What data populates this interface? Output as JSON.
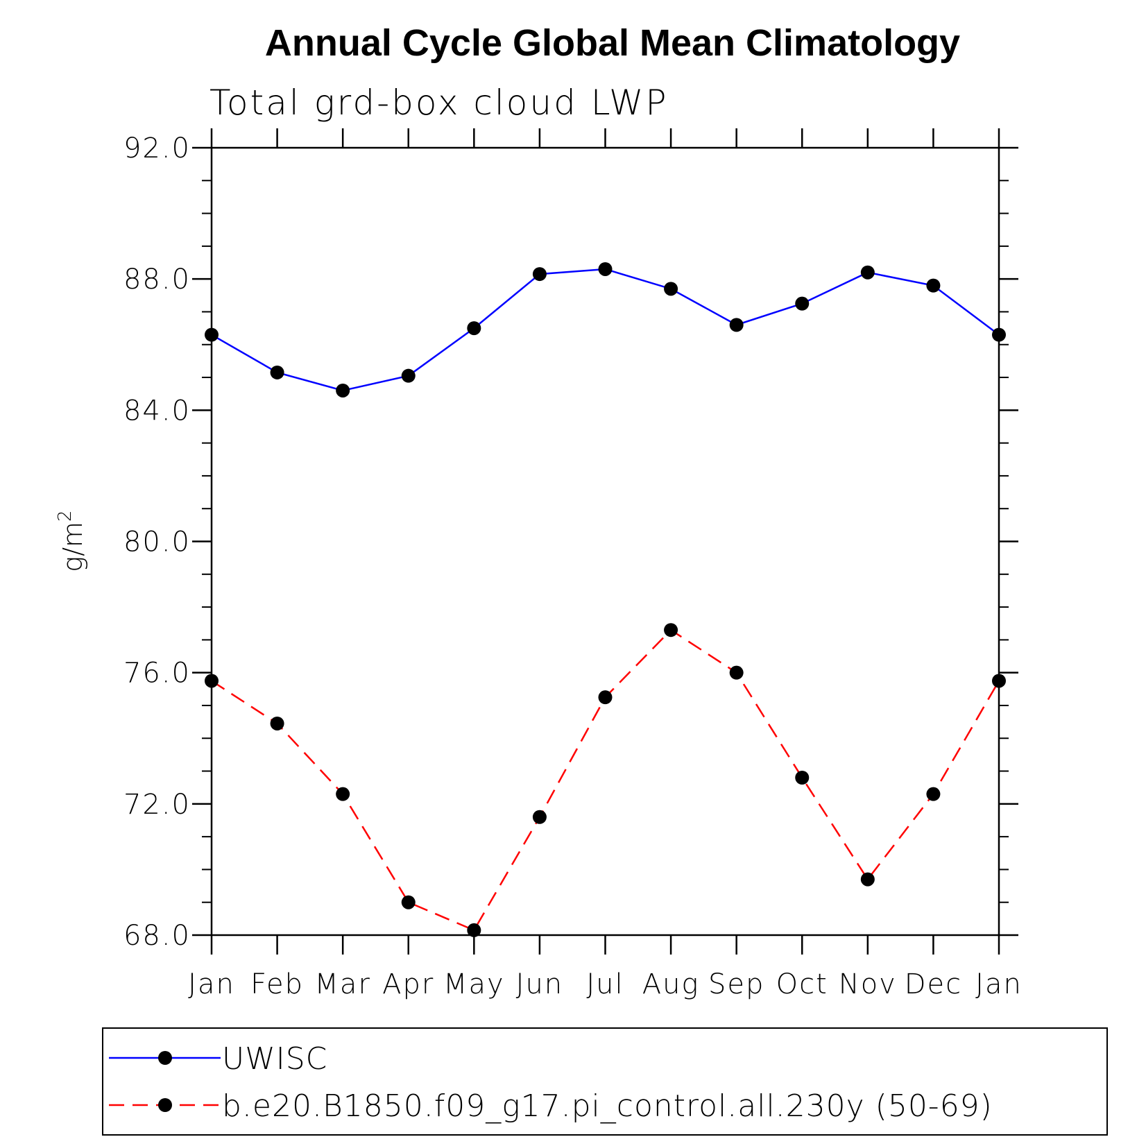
{
  "chart_data": {
    "type": "line",
    "title": "Annual Cycle Global Mean Climatology",
    "subtitle": "Total grd-box cloud LWP",
    "xlabel": "",
    "ylabel": "g/m",
    "ylabel_superscript": "2",
    "categories": [
      "Jan",
      "Feb",
      "Mar",
      "Apr",
      "May",
      "Jun",
      "Jul",
      "Aug",
      "Sep",
      "Oct",
      "Nov",
      "Dec",
      "Jan"
    ],
    "ylim": [
      68.0,
      92.0
    ],
    "yticks": [
      "68.0",
      "72.0",
      "76.0",
      "80.0",
      "84.0",
      "88.0",
      "92.0"
    ],
    "ytick_values": [
      68,
      72,
      76,
      80,
      84,
      88,
      92
    ],
    "yminor_step": 1,
    "grid": false,
    "legend_placement": "bottom",
    "series": [
      {
        "name": "UWISC",
        "color": "#0000ff",
        "line_style": "solid",
        "marker": "filled-circle",
        "values": [
          86.3,
          85.15,
          84.6,
          85.05,
          86.5,
          88.15,
          88.3,
          87.7,
          86.6,
          87.25,
          88.2,
          87.8,
          86.3
        ]
      },
      {
        "name": "b.e20.B1850.f09_g17.pi_control.all.230y (50-69)",
        "color": "#ff0000",
        "line_style": "dashed",
        "marker": "filled-circle",
        "values": [
          75.75,
          74.45,
          72.3,
          69.0,
          68.15,
          71.6,
          75.25,
          77.3,
          76.0,
          72.8,
          69.7,
          72.3,
          75.75
        ]
      }
    ]
  }
}
